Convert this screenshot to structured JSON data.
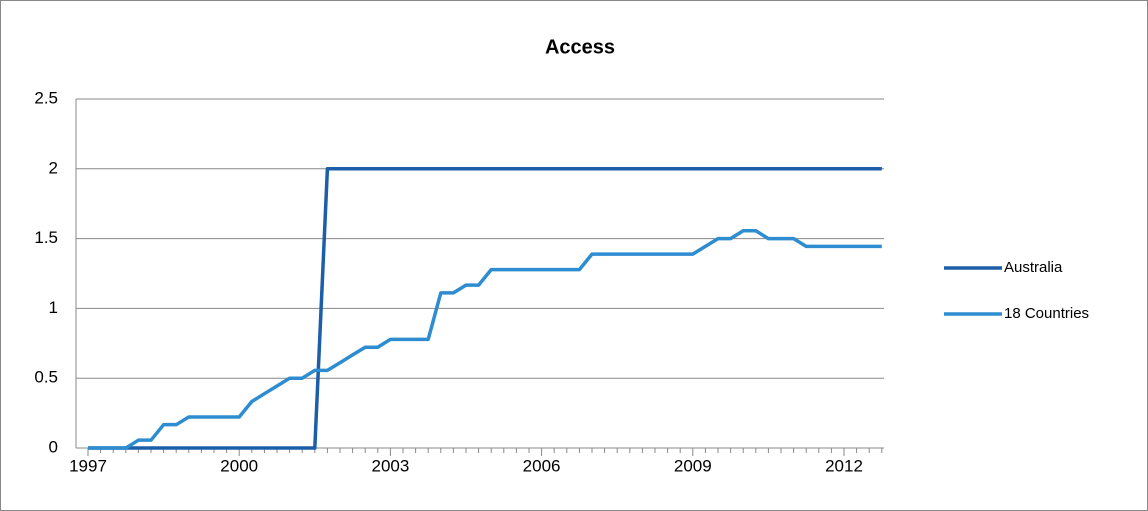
{
  "chart_data": {
    "type": "line",
    "title": "Access",
    "categories": [
      "1997",
      null,
      null,
      null,
      null,
      null,
      null,
      null,
      null,
      null,
      null,
      null,
      "2000",
      null,
      null,
      null,
      null,
      null,
      null,
      null,
      null,
      null,
      null,
      null,
      "2003",
      null,
      null,
      null,
      null,
      null,
      null,
      null,
      null,
      null,
      null,
      null,
      "2006",
      null,
      null,
      null,
      null,
      null,
      null,
      null,
      null,
      null,
      null,
      null,
      "2009",
      null,
      null,
      null,
      null,
      null,
      null,
      null,
      null,
      null,
      null,
      null,
      "2012",
      null,
      null,
      null
    ],
    "series": [
      {
        "name": "Australia",
        "color": "#1d5ea8",
        "values": [
          0,
          0,
          0,
          0,
          0,
          0,
          0,
          0,
          0,
          0,
          0,
          0,
          0,
          0,
          0,
          0,
          0,
          0,
          0,
          2,
          2,
          2,
          2,
          2,
          2,
          2,
          2,
          2,
          2,
          2,
          2,
          2,
          2,
          2,
          2,
          2,
          2,
          2,
          2,
          2,
          2,
          2,
          2,
          2,
          2,
          2,
          2,
          2,
          2,
          2,
          2,
          2,
          2,
          2,
          2,
          2,
          2,
          2,
          2,
          2,
          2,
          2,
          2,
          2
        ]
      },
      {
        "name": "18 Countries",
        "color": "#2e8dd0",
        "values": [
          0,
          0,
          0,
          0,
          0.056,
          0.056,
          0.167,
          0.167,
          0.222,
          0.222,
          0.222,
          0.222,
          0.222,
          0.333,
          0.389,
          0.444,
          0.5,
          0.5,
          0.556,
          0.556,
          0.611,
          0.667,
          0.722,
          0.722,
          0.778,
          0.778,
          0.778,
          0.778,
          1.111,
          1.111,
          1.167,
          1.167,
          1.278,
          1.278,
          1.278,
          1.278,
          1.278,
          1.278,
          1.278,
          1.278,
          1.389,
          1.389,
          1.389,
          1.389,
          1.389,
          1.389,
          1.389,
          1.389,
          1.389,
          1.444,
          1.5,
          1.5,
          1.556,
          1.556,
          1.5,
          1.5,
          1.5,
          1.444,
          1.444,
          1.444,
          1.444,
          1.444,
          1.444,
          1.444
        ]
      }
    ],
    "ylim": [
      0,
      2.5
    ],
    "yticks": [
      0,
      0.5,
      1,
      1.5,
      2,
      2.5
    ],
    "grid": true,
    "legend": "right"
  }
}
